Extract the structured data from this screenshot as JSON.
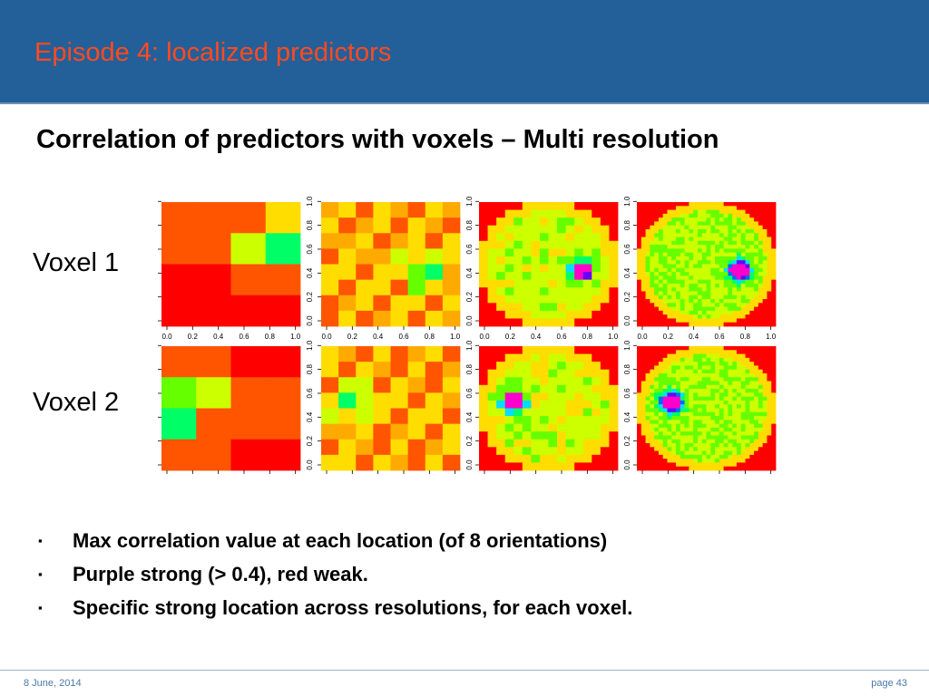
{
  "slide": {
    "title": "Episode 4: localized predictors",
    "subtitle": "Correlation of predictors with voxels – Multi resolution",
    "row_labels": [
      "Voxel 1",
      "Voxel 2"
    ],
    "bullets": [
      "Max correlation value at each location (of 8 orientations)",
      "Purple strong (> 0.4), red weak.",
      "Specific strong location across resolutions, for each voxel."
    ],
    "footer": {
      "date": "8 June, 2014",
      "page": "page 43"
    },
    "bullet_mark": "▪"
  },
  "figure": {
    "tick_labels": [
      "0.0",
      "0.2",
      "0.4",
      "0.6",
      "0.8",
      "1.0"
    ],
    "resolutions": [
      4,
      8,
      16,
      32
    ],
    "colormap": [
      "#ff0000",
      "#ff5500",
      "#ffaa00",
      "#ffdd00",
      "#ccff00",
      "#66ff00",
      "#00ff66",
      "#00ddff",
      "#0066ff",
      "#6600ff",
      "#ff00cc"
    ],
    "strong_threshold": 0.4,
    "voxel1_coarse": [
      [
        0.08,
        0.08,
        0.08,
        0.15
      ],
      [
        0.08,
        0.08,
        0.2,
        0.3
      ],
      [
        0.02,
        0.02,
        0.08,
        0.08
      ],
      [
        0.02,
        0.02,
        0.02,
        0.02
      ]
    ],
    "voxel2_coarse": [
      [
        0.08,
        0.08,
        0.02,
        0.02
      ],
      [
        0.25,
        0.2,
        0.08,
        0.08
      ],
      [
        0.28,
        0.08,
        0.08,
        0.08
      ],
      [
        0.08,
        0.08,
        0.02,
        0.02
      ]
    ],
    "voxel1_hotspot": [
      0.74,
      0.55
    ],
    "voxel2_hotspot": [
      0.25,
      0.45
    ]
  }
}
